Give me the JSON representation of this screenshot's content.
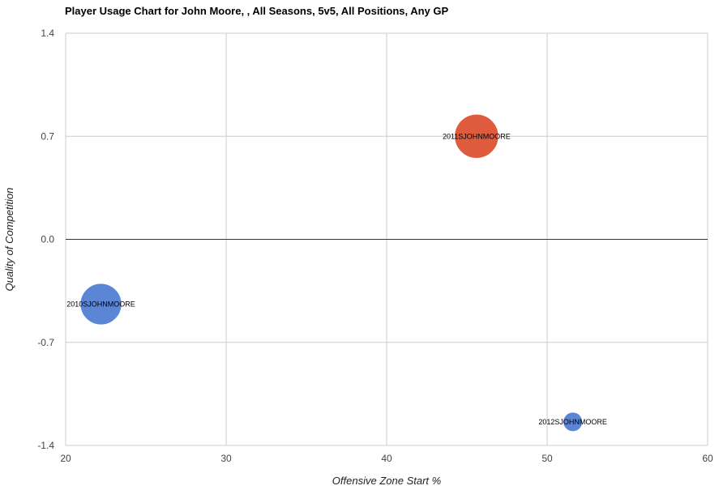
{
  "chart_data": {
    "type": "scatter",
    "title": "Player Usage Chart for John Moore, , All Seasons, 5v5, All Positions, Any GP",
    "xlabel": "Offensive Zone Start %",
    "ylabel": "Quality of Competition",
    "xlim": [
      20,
      60
    ],
    "ylim": [
      -1.4,
      1.4
    ],
    "x_ticks": [
      "20",
      "30",
      "40",
      "50",
      "60"
    ],
    "x_tick_values": [
      20,
      30,
      40,
      50,
      60
    ],
    "y_ticks": [
      "1.4",
      "0.7",
      "0.0",
      "-0.7",
      "-1.4"
    ],
    "y_tick_values": [
      1.4,
      0.7,
      0.0,
      -0.7,
      -1.4
    ],
    "grid": true,
    "points": [
      {
        "label": "2010SJOHNMOORE",
        "x": 22.2,
        "y": -0.44,
        "size": 0.64,
        "color": "#5b86d6"
      },
      {
        "label": "2011SJOHNMOORE",
        "x": 45.6,
        "y": 0.7,
        "size": 0.68,
        "color": "#df5b3d"
      },
      {
        "label": "2012SJOHNMOORE",
        "x": 51.6,
        "y": -1.24,
        "size": 0.3,
        "color": "#5b86d6"
      }
    ]
  }
}
